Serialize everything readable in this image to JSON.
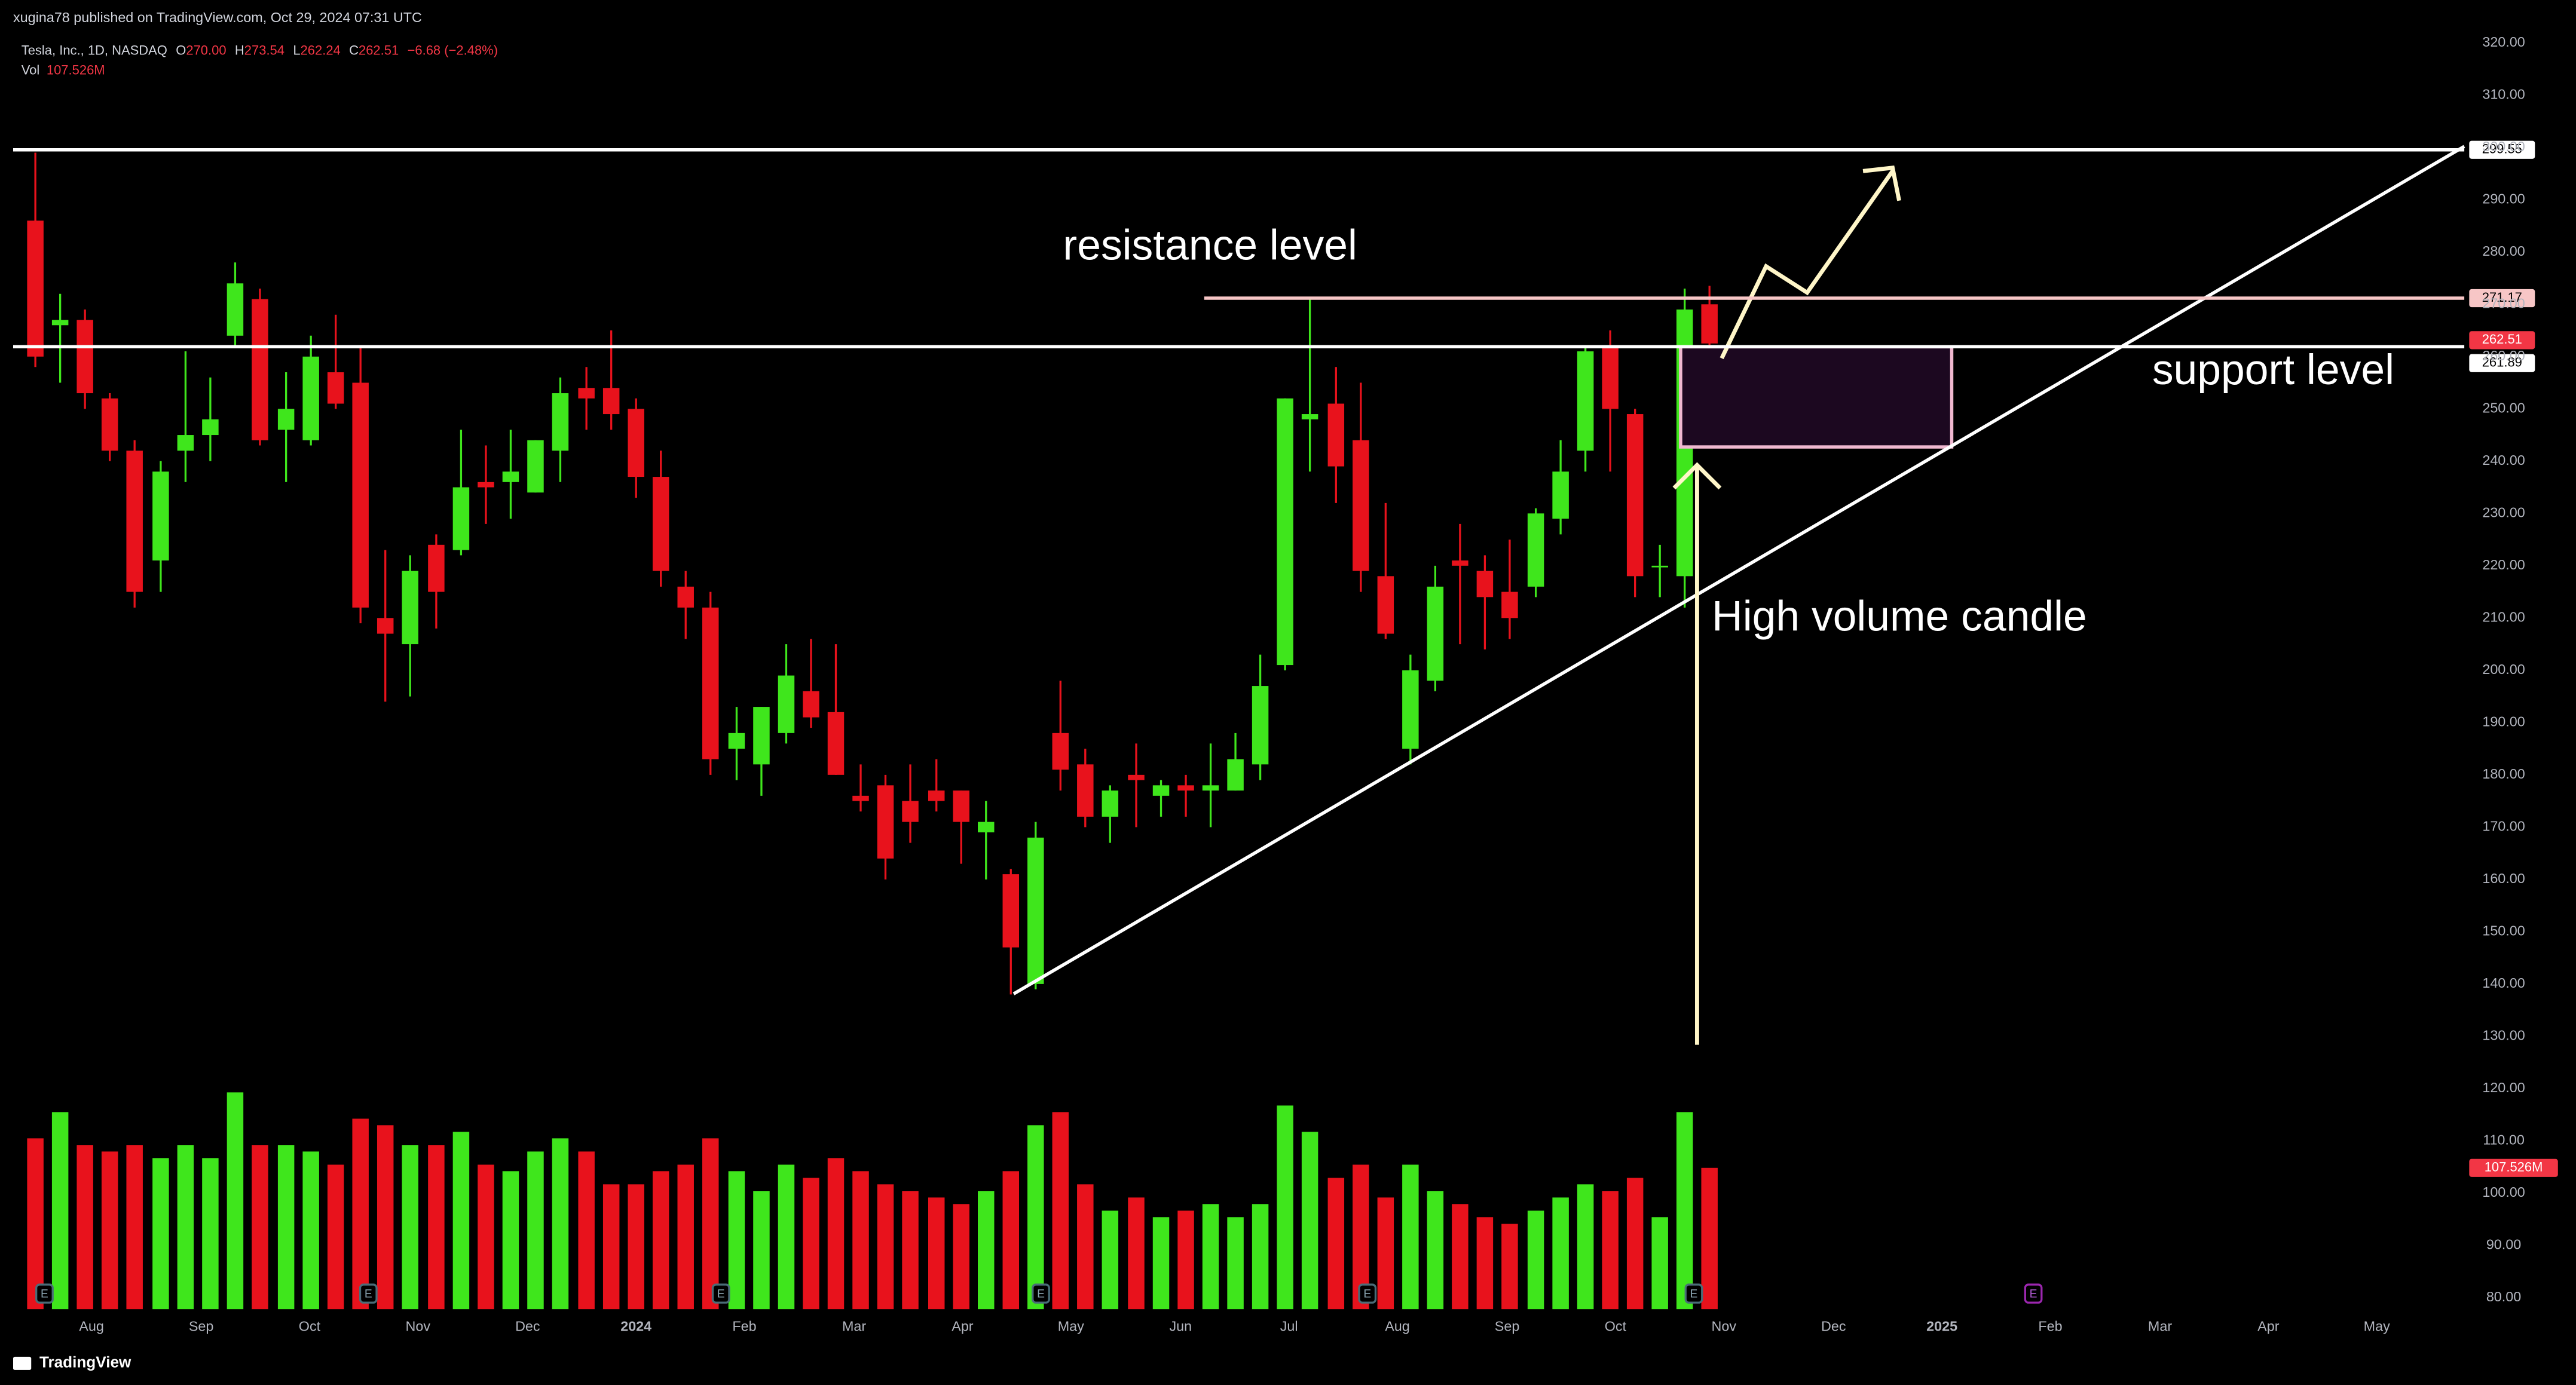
{
  "header": "xugina78 published on TradingView.com, Oct 29, 2024 07:31 UTC",
  "footer": "TradingView",
  "chart_data": {
    "type": "candlestick",
    "legend": {
      "symbol": "Tesla, Inc., 1D, NASDAQ",
      "o_label": "O",
      "o": "270.00",
      "h_label": "H",
      "h": "273.54",
      "l_label": "L",
      "l": "262.24",
      "c_label": "C",
      "c": "262.51",
      "change": "−6.68 (−2.48%)",
      "vol_label": "Vol",
      "vol": "107.526M"
    },
    "x": [
      2023.54,
      2023.559,
      2023.578,
      2023.597,
      2023.616,
      2023.636,
      2023.655,
      2023.674,
      2023.693,
      2023.712,
      2023.732,
      2023.751,
      2023.77,
      2023.789,
      2023.808,
      2023.827,
      2023.847,
      2023.866,
      2023.885,
      2023.904,
      2023.923,
      2023.942,
      2023.962,
      2023.981,
      2024.0,
      2024.019,
      2024.038,
      2024.057,
      2024.077,
      2024.096,
      2024.115,
      2024.134,
      2024.153,
      2024.172,
      2024.191,
      2024.21,
      2024.23,
      2024.249,
      2024.268,
      2024.287,
      2024.306,
      2024.325,
      2024.344,
      2024.363,
      2024.383,
      2024.402,
      2024.421,
      2024.44,
      2024.459,
      2024.478,
      2024.497,
      2024.516,
      2024.536,
      2024.555,
      2024.574,
      2024.593,
      2024.612,
      2024.631,
      2024.65,
      2024.669,
      2024.689,
      2024.708,
      2024.727,
      2024.746,
      2024.765,
      2024.784,
      2024.803,
      2024.822
    ],
    "open": [
      286,
      266,
      267,
      252,
      242,
      221,
      242,
      245,
      264,
      271,
      246,
      244,
      257,
      255,
      210,
      205,
      224,
      223,
      236,
      236,
      234,
      242,
      254,
      254,
      250,
      237,
      216,
      212,
      185,
      182,
      188,
      196,
      192,
      176,
      178,
      175,
      177,
      177,
      169,
      161,
      140,
      188,
      182,
      172,
      180,
      176,
      178,
      177,
      177,
      182,
      201,
      248,
      251,
      244,
      218,
      185,
      198,
      221,
      219,
      215,
      216,
      229,
      242,
      262,
      249,
      220,
      218,
      270
    ],
    "high": [
      299,
      272,
      269,
      253,
      244,
      240,
      261,
      256,
      278,
      273,
      257,
      264,
      268,
      262,
      223,
      222,
      226,
      246,
      243,
      246,
      244,
      256,
      258,
      265,
      252,
      242,
      219,
      215,
      193,
      193,
      205,
      206,
      205,
      182,
      180,
      182,
      183,
      177,
      175,
      162,
      171,
      198,
      185,
      178,
      186,
      179,
      180,
      186,
      188,
      203,
      252,
      271,
      258,
      255,
      232,
      203,
      220,
      228,
      222,
      225,
      231,
      244,
      262,
      265,
      250,
      224,
      273,
      273.54
    ],
    "low": [
      258,
      255,
      250,
      240,
      212,
      215,
      236,
      240,
      262,
      243,
      236,
      243,
      250,
      209,
      194,
      195,
      208,
      222,
      228,
      229,
      234,
      236,
      246,
      246,
      233,
      216,
      206,
      180,
      179,
      176,
      186,
      189,
      180,
      173,
      160,
      167,
      173,
      163,
      160,
      138,
      139,
      177,
      170,
      167,
      170,
      172,
      172,
      170,
      177,
      179,
      200,
      238,
      232,
      215,
      206,
      182,
      196,
      205,
      204,
      206,
      214,
      226,
      238,
      238,
      214,
      214,
      212,
      262.24
    ],
    "close": [
      260,
      267,
      253,
      242,
      215,
      238,
      245,
      248,
      274,
      244,
      250,
      260,
      251,
      212,
      207,
      219,
      215,
      235,
      235,
      238,
      244,
      253,
      252,
      249,
      237,
      219,
      212,
      183,
      188,
      193,
      199,
      191,
      180,
      175,
      164,
      171,
      175,
      171,
      171,
      147,
      168,
      181,
      172,
      177,
      179,
      178,
      177,
      178,
      183,
      197,
      252,
      249,
      239,
      219,
      207,
      200,
      216,
      220,
      214,
      210,
      230,
      238,
      261,
      250,
      218,
      220,
      269,
      262.51
    ],
    "volume": [
      130,
      150,
      125,
      120,
      125,
      115,
      125,
      115,
      165,
      125,
      125,
      120,
      110,
      145,
      140,
      125,
      125,
      135,
      110,
      105,
      120,
      130,
      120,
      95,
      95,
      105,
      110,
      130,
      105,
      90,
      110,
      100,
      115,
      105,
      95,
      90,
      85,
      80,
      90,
      105,
      140,
      150,
      95,
      75,
      85,
      70,
      75,
      80,
      70,
      80,
      155,
      135,
      100,
      110,
      85,
      110,
      90,
      80,
      70,
      65,
      75,
      85,
      95,
      90,
      100,
      70,
      150,
      107.526
    ],
    "up_color": "#3fe61c",
    "down_color": "#e8121c",
    "xlim": [
      2023.523,
      2025.4
    ],
    "xticks": [
      {
        "value": 2023.583,
        "label": "Aug"
      },
      {
        "value": 2023.667,
        "label": "Sep"
      },
      {
        "value": 2023.75,
        "label": "Oct"
      },
      {
        "value": 2023.833,
        "label": "Nov"
      },
      {
        "value": 2023.917,
        "label": "Dec"
      },
      2024,
      {
        "value": 2024.083,
        "label": "Feb"
      },
      {
        "value": 2024.167,
        "label": "Mar"
      },
      {
        "value": 2024.25,
        "label": "Apr"
      },
      {
        "value": 2024.333,
        "label": "May"
      },
      {
        "value": 2024.417,
        "label": "Jun"
      },
      {
        "value": 2024.5,
        "label": "Jul"
      },
      {
        "value": 2024.583,
        "label": "Aug"
      },
      {
        "value": 2024.667,
        "label": "Sep"
      },
      {
        "value": 2024.75,
        "label": "Oct"
      },
      {
        "value": 2024.833,
        "label": "Nov"
      },
      {
        "value": 2024.917,
        "label": "Dec"
      },
      2025,
      {
        "value": 2025.083,
        "label": "Feb"
      },
      {
        "value": 2025.167,
        "label": "Mar"
      },
      {
        "value": 2025.25,
        "label": "Apr"
      },
      {
        "value": 2025.333,
        "label": "May"
      }
    ],
    "ylim": [
      77.8,
      322.5
    ],
    "yticks": [
      {
        "value": 80,
        "label": "80.00"
      },
      {
        "value": 90,
        "label": "90.00"
      },
      {
        "value": 100,
        "label": "100.00"
      },
      {
        "value": 110,
        "label": "110.00"
      },
      {
        "value": 120,
        "label": "120.00"
      },
      {
        "value": 130,
        "label": "130.00"
      },
      {
        "value": 140,
        "label": "140.00"
      },
      {
        "value": 150,
        "label": "150.00"
      },
      {
        "value": 160,
        "label": "160.00"
      },
      {
        "value": 170,
        "label": "170.00"
      },
      {
        "value": 180,
        "label": "180.00"
      },
      {
        "value": 190,
        "label": "190.00"
      },
      {
        "value": 200,
        "label": "200.00"
      },
      {
        "value": 210,
        "label": "210.00"
      },
      {
        "value": 220,
        "label": "220.00"
      },
      {
        "value": 230,
        "label": "230.00"
      },
      {
        "value": 240,
        "label": "240.00"
      },
      {
        "value": 250,
        "label": "250.00"
      },
      {
        "value": 260,
        "label": "260.00"
      },
      {
        "value": 270,
        "label": "270.00"
      },
      {
        "value": 280,
        "label": "280.00"
      },
      {
        "value": 290,
        "label": "290.00"
      },
      {
        "value": 300,
        "label": "300.00"
      },
      {
        "value": 310,
        "label": "310.00"
      },
      {
        "value": 320,
        "label": "320.00"
      }
    ],
    "volume_lim": [
      0,
      300
    ],
    "levels": [
      {
        "value": 299.55,
        "color": "#ffffff"
      },
      {
        "value": 271.17,
        "color": "#f7c6c6"
      },
      {
        "value": 261.89,
        "color": "#ffffff"
      }
    ],
    "earnings": [
      2023.547,
      2023.795,
      2024.065,
      2024.31,
      2024.56,
      2024.81,
      2025.07
    ],
    "earnings_label": "E",
    "annotations": {
      "resistance": "resistance level",
      "support": "support level",
      "volume": "High volume candle"
    }
  }
}
